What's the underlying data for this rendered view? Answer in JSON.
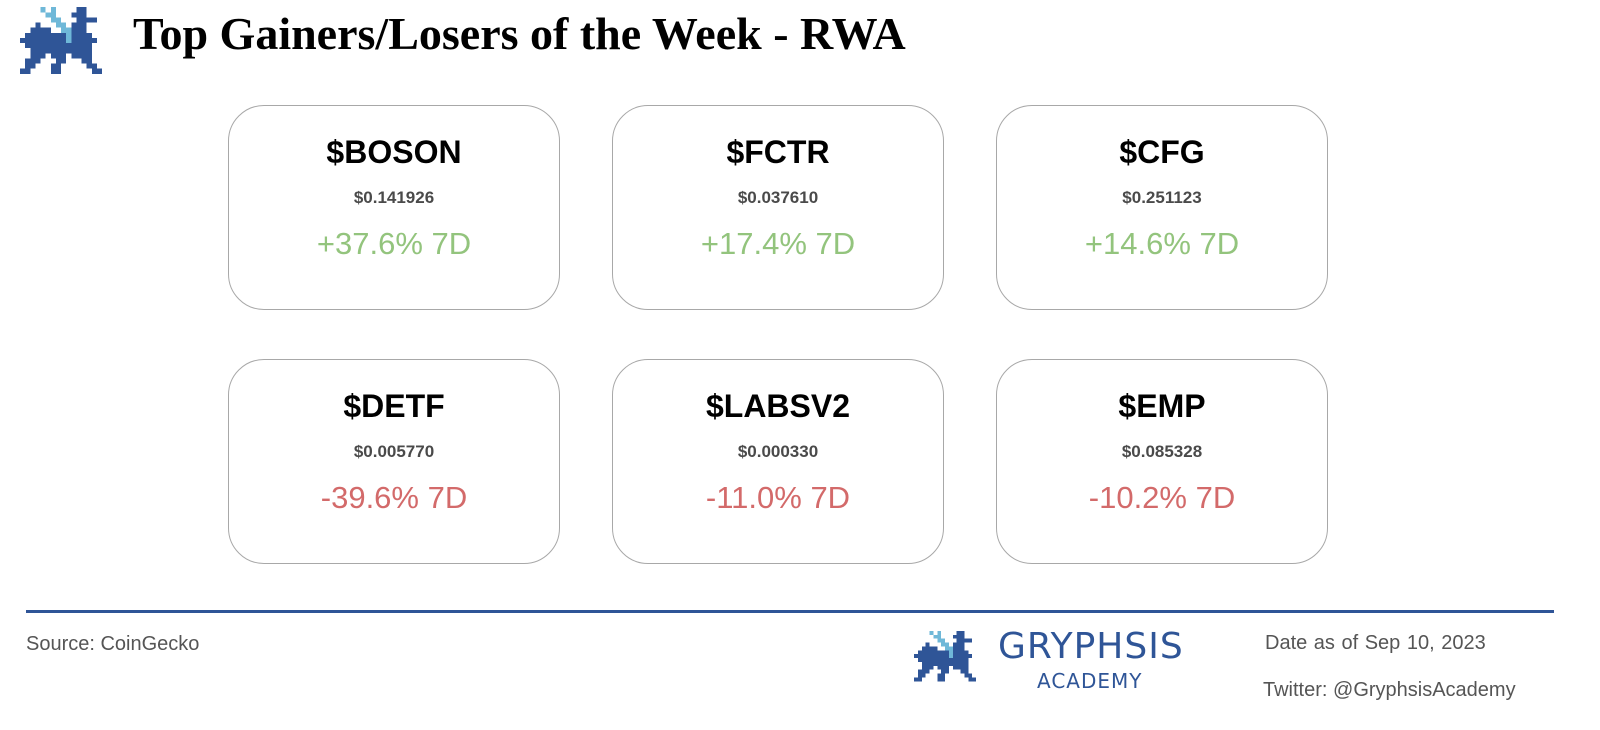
{
  "header": {
    "title": "Top Gainers/Losers of the Week - RWA"
  },
  "cards": [
    {
      "ticker": "$BOSON",
      "price": "$0.141926",
      "change": "+37.6% 7D",
      "direction": "up"
    },
    {
      "ticker": "$FCTR",
      "price": "$0.037610",
      "change": "+17.4% 7D",
      "direction": "up"
    },
    {
      "ticker": "$CFG",
      "price": "$0.251123",
      "change": "+14.6% 7D",
      "direction": "up"
    },
    {
      "ticker": "$DETF",
      "price": "$0.005770",
      "change": "-39.6% 7D",
      "direction": "down"
    },
    {
      "ticker": "$LABSV2",
      "price": "$0.000330",
      "change": "-11.0% 7D",
      "direction": "down"
    },
    {
      "ticker": "$EMP",
      "price": "$0.085328",
      "change": "-10.2% 7D",
      "direction": "down"
    }
  ],
  "footer": {
    "source": "Source: CoinGecko",
    "brand_name": "GRYPHSIS",
    "brand_sub": "ACADEMY",
    "date": "Date as of  Sep 10, 2023",
    "twitter": "Twitter: @GryphsisAcademy"
  },
  "colors": {
    "gain": "#93c47d",
    "loss": "#d36a6a",
    "brand": "#2f5597",
    "brand_light": "#6fb8d8"
  },
  "icons": {
    "logo": "gryphon-pixel-logo"
  }
}
